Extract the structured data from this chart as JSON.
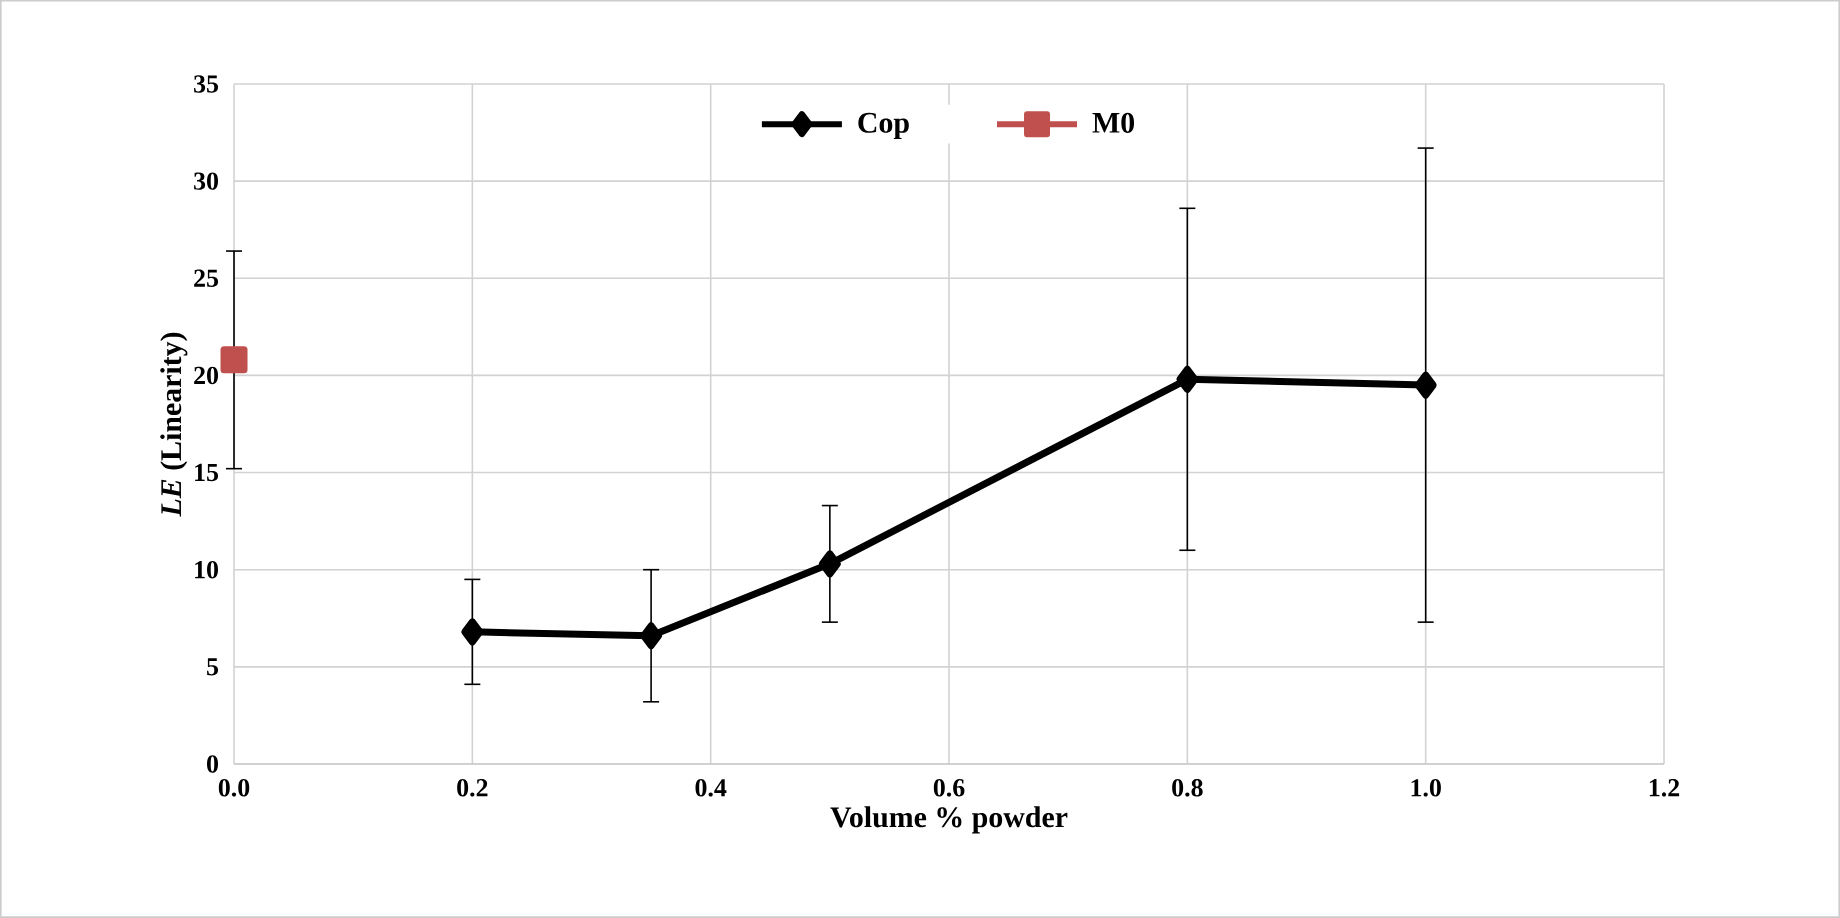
{
  "chart_data": {
    "type": "line",
    "xlabel": "Volume % powder",
    "ylabel": "*LE* (Linearity)",
    "xlim": [
      0,
      1.2
    ],
    "ylim": [
      0,
      35
    ],
    "xticks": [
      {
        "value": 0,
        "label": "0.0"
      },
      0.2,
      0.4,
      0.6,
      0.8,
      {
        "value": 1,
        "label": "1.0"
      },
      1.2
    ],
    "yticks": [
      0,
      5,
      10,
      15,
      20,
      25,
      30,
      35
    ],
    "grid": true,
    "legend": "top",
    "series": [
      {
        "name": "Cop",
        "color": "#000000",
        "marker": "diamond",
        "line_style": "solid",
        "x": [
          0.2,
          0.35,
          0.5,
          0.8,
          1.0
        ],
        "values": [
          6.8,
          6.6,
          10.3,
          19.8,
          19.5
        ],
        "errors": [
          2.7,
          3.4,
          3.0,
          8.8,
          12.2
        ]
      },
      {
        "name": "M0",
        "color": "#c0504d",
        "marker": "square",
        "line_style": "solid",
        "x": [
          0.0
        ],
        "values": [
          20.8
        ],
        "errors": [
          5.6
        ]
      }
    ]
  }
}
